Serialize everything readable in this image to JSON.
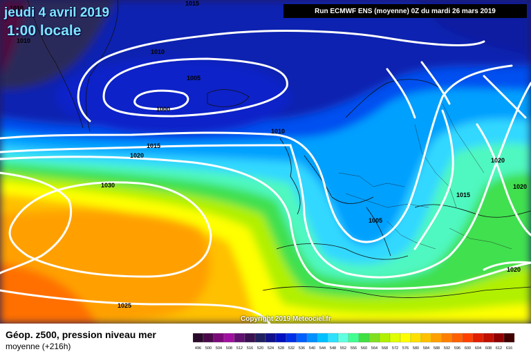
{
  "header": {
    "date": "jeudi 4 avril 2019",
    "time": "1:00 locale",
    "run_info": "Run ECMWF ENS (moyenne) 0Z du mardi 26 mars 2019"
  },
  "map": {
    "copyright": "Copyright 2019 Meteociel.fr",
    "isobar_labels": [
      "1015",
      "1010",
      "1010",
      "1005",
      "1000",
      "1010",
      "1015",
      "1020",
      "1030",
      "1025",
      "1005",
      "1015",
      "1020",
      "1020",
      "1020"
    ]
  },
  "footer": {
    "title": "Géop. z500, pression niveau mer",
    "subtitle": "moyenne  (+216h)"
  },
  "legend": {
    "values": [
      "496",
      "500",
      "504",
      "508",
      "512",
      "516",
      "520",
      "524",
      "528",
      "532",
      "536",
      "540",
      "544",
      "548",
      "552",
      "556",
      "560",
      "564",
      "568",
      "572",
      "576",
      "580",
      "584",
      "588",
      "592",
      "596",
      "600",
      "604",
      "608",
      "612",
      "616"
    ],
    "colors": [
      "#2a0a2a",
      "#4a0a4a",
      "#7a0a7a",
      "#a010a0",
      "#601070",
      "#3a1050",
      "#202060",
      "#10108a",
      "#0010c0",
      "#0030e8",
      "#0060ff",
      "#0090ff",
      "#00c0ff",
      "#30e0ff",
      "#60ffe0",
      "#40ff90",
      "#40e040",
      "#80e020",
      "#b0f000",
      "#e0ff00",
      "#ffff00",
      "#ffe000",
      "#ffc000",
      "#ffa000",
      "#ff8000",
      "#ff6000",
      "#ff4000",
      "#e02000",
      "#c01000",
      "#900000",
      "#400000"
    ]
  }
}
